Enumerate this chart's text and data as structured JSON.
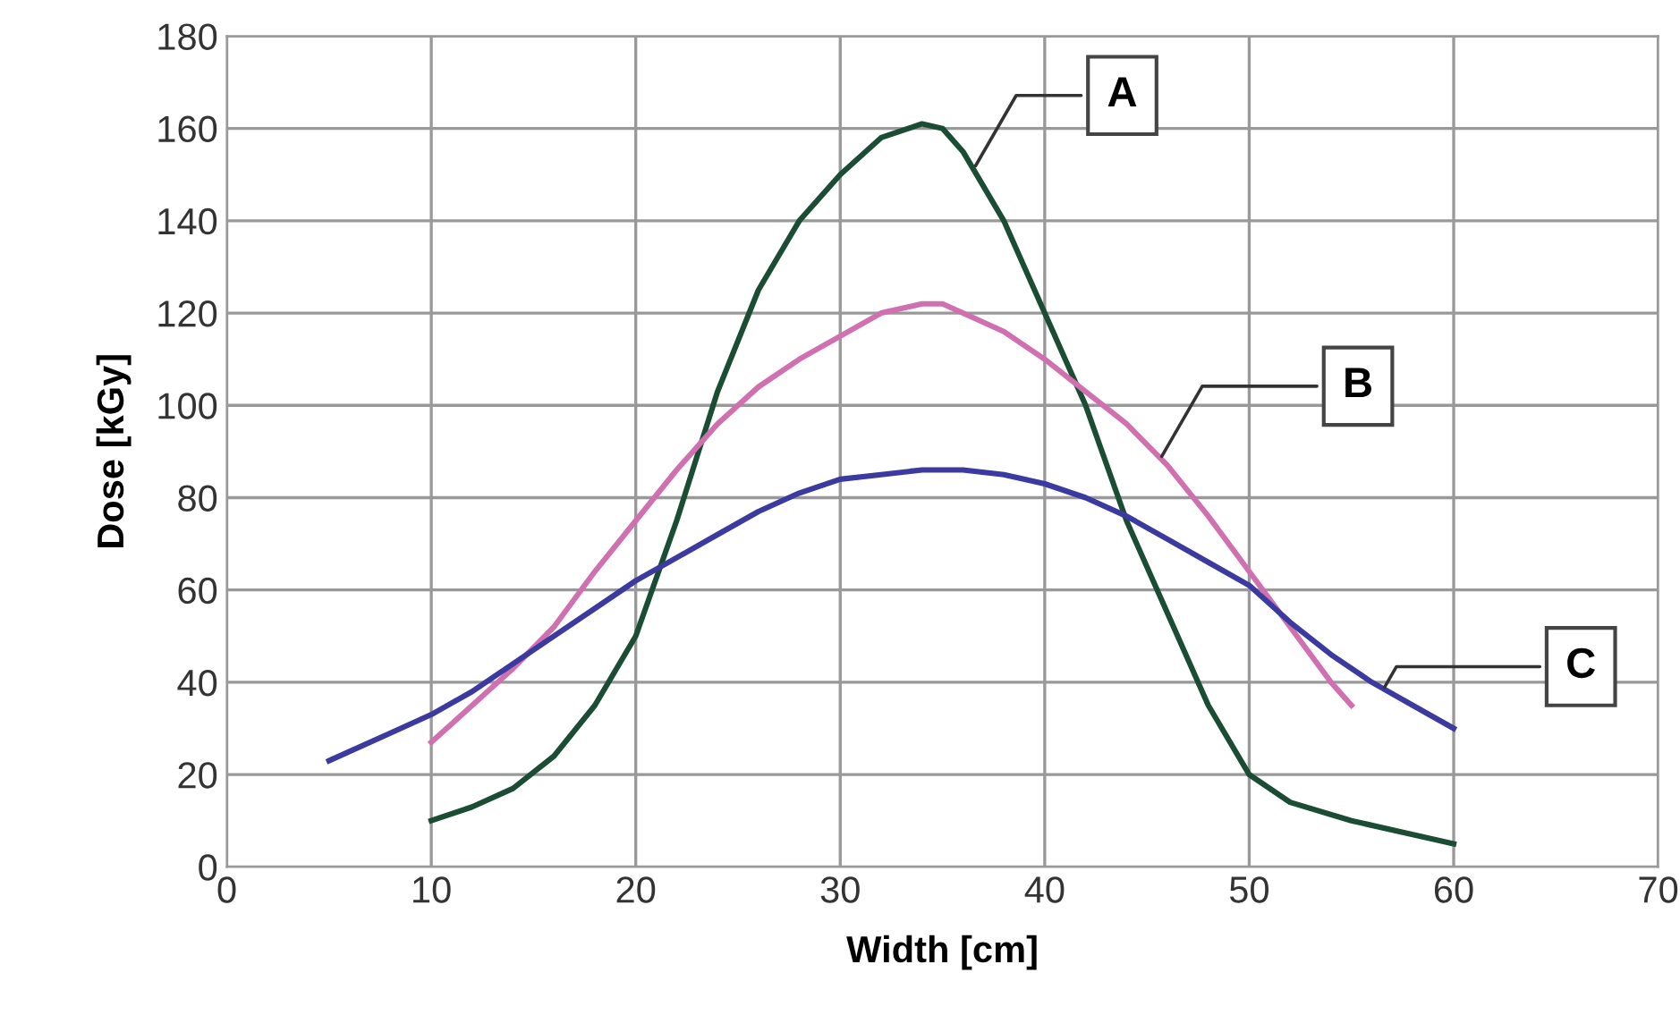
{
  "chart_data": {
    "type": "line",
    "xlabel": "Width [cm]",
    "ylabel": "Dose [kGy]",
    "xlim": [
      0,
      70
    ],
    "xticks": [
      0,
      10,
      20,
      30,
      40,
      50,
      60,
      70
    ],
    "ylim": [
      0,
      180
    ],
    "yticks": [
      0,
      20,
      40,
      60,
      80,
      100,
      120,
      140,
      160,
      180
    ],
    "grid": true,
    "marker": "none",
    "line_style": "solid",
    "series": [
      {
        "color": "#1a4d33",
        "x": [
          10,
          12,
          14,
          16,
          18,
          20,
          22,
          24,
          26,
          28,
          30,
          32,
          34,
          35,
          36,
          38,
          40,
          42,
          44,
          46,
          48,
          50,
          52,
          55,
          58,
          60
        ],
        "values": [
          10,
          13,
          17,
          24,
          35,
          50,
          75,
          103,
          125,
          140,
          150,
          158,
          161,
          160,
          155,
          140,
          120,
          100,
          75,
          55,
          35,
          20,
          14,
          10,
          7,
          5
        ]
      },
      {
        "color": "#d070b0",
        "x": [
          10,
          12,
          14,
          16,
          18,
          20,
          22,
          24,
          26,
          28,
          30,
          32,
          34,
          35,
          36,
          38,
          40,
          42,
          44,
          46,
          48,
          50,
          52,
          54,
          55
        ],
        "values": [
          27,
          35,
          43,
          52,
          64,
          75,
          86,
          96,
          104,
          110,
          115,
          120,
          122,
          122,
          120,
          116,
          110,
          103,
          96,
          87,
          76,
          64,
          52,
          40,
          35
        ]
      },
      {
        "color": "#3a3aa0",
        "x": [
          5,
          8,
          10,
          12,
          14,
          16,
          18,
          20,
          22,
          24,
          26,
          28,
          30,
          32,
          34,
          36,
          38,
          40,
          42,
          44,
          46,
          48,
          50,
          52,
          54,
          56,
          58,
          60
        ],
        "values": [
          23,
          29,
          33,
          38,
          44,
          50,
          56,
          62,
          67,
          72,
          77,
          81,
          84,
          85,
          86,
          86,
          85,
          83,
          80,
          76,
          71,
          66,
          61,
          53,
          46,
          40,
          35,
          30
        ]
      }
    ],
    "annotations": [
      {
        "text": "A",
        "x": 36.5,
        "y": 151
      },
      {
        "text": "B",
        "x": 45.6,
        "y": 88
      },
      {
        "text": "C",
        "x": 56.5,
        "y": 38
      }
    ]
  }
}
